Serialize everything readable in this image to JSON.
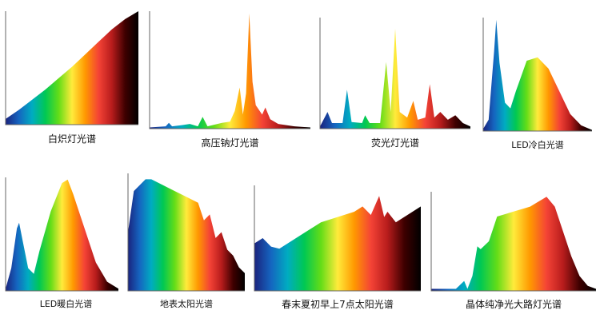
{
  "spectrum_colors": [
    "#1a237e",
    "#1565c0",
    "#00acc1",
    "#00c853",
    "#64dd17",
    "#ffeb3b",
    "#ff9800",
    "#f44336",
    "#b71c1c",
    "#3e0000",
    "#000000"
  ],
  "chart_data": [
    {
      "type": "area",
      "title": "白炽灯光谱",
      "points": [
        [
          0,
          0.05
        ],
        [
          0.1,
          0.13
        ],
        [
          0.2,
          0.22
        ],
        [
          0.3,
          0.31
        ],
        [
          0.4,
          0.41
        ],
        [
          0.5,
          0.51
        ],
        [
          0.6,
          0.62
        ],
        [
          0.7,
          0.73
        ],
        [
          0.8,
          0.84
        ],
        [
          0.9,
          0.93
        ],
        [
          1.0,
          1.0
        ]
      ]
    },
    {
      "type": "area",
      "title": "高压钠灯光谱",
      "points": [
        [
          0,
          0.01
        ],
        [
          0.1,
          0.02
        ],
        [
          0.12,
          0.05
        ],
        [
          0.14,
          0.02
        ],
        [
          0.2,
          0.03
        ],
        [
          0.25,
          0.04
        ],
        [
          0.3,
          0.02
        ],
        [
          0.33,
          0.1
        ],
        [
          0.36,
          0.02
        ],
        [
          0.45,
          0.05
        ],
        [
          0.5,
          0.06
        ],
        [
          0.53,
          0.15
        ],
        [
          0.56,
          0.35
        ],
        [
          0.58,
          0.12
        ],
        [
          0.6,
          0.3
        ],
        [
          0.62,
          0.98
        ],
        [
          0.64,
          0.4
        ],
        [
          0.66,
          0.2
        ],
        [
          0.7,
          0.12
        ],
        [
          0.72,
          0.18
        ],
        [
          0.75,
          0.08
        ],
        [
          0.8,
          0.04
        ],
        [
          0.9,
          0.02
        ],
        [
          1.0,
          0.01
        ]
      ]
    },
    {
      "type": "area",
      "title": "荧光灯光谱",
      "points": [
        [
          0,
          0.02
        ],
        [
          0.05,
          0.15
        ],
        [
          0.08,
          0.05
        ],
        [
          0.15,
          0.05
        ],
        [
          0.18,
          0.35
        ],
        [
          0.21,
          0.06
        ],
        [
          0.28,
          0.05
        ],
        [
          0.3,
          0.12
        ],
        [
          0.33,
          0.05
        ],
        [
          0.4,
          0.05
        ],
        [
          0.44,
          0.6
        ],
        [
          0.47,
          0.15
        ],
        [
          0.5,
          0.9
        ],
        [
          0.53,
          0.15
        ],
        [
          0.58,
          0.1
        ],
        [
          0.62,
          0.25
        ],
        [
          0.65,
          0.08
        ],
        [
          0.7,
          0.1
        ],
        [
          0.73,
          0.4
        ],
        [
          0.76,
          0.1
        ],
        [
          0.8,
          0.15
        ],
        [
          0.85,
          0.08
        ],
        [
          0.9,
          0.12
        ],
        [
          0.95,
          0.05
        ],
        [
          1.0,
          0.02
        ]
      ]
    },
    {
      "type": "area",
      "title": "LED冷白光谱",
      "points": [
        [
          0,
          0.02
        ],
        [
          0.05,
          0.1
        ],
        [
          0.1,
          0.7
        ],
        [
          0.12,
          0.98
        ],
        [
          0.15,
          0.6
        ],
        [
          0.2,
          0.25
        ],
        [
          0.25,
          0.2
        ],
        [
          0.3,
          0.35
        ],
        [
          0.4,
          0.62
        ],
        [
          0.5,
          0.65
        ],
        [
          0.6,
          0.55
        ],
        [
          0.7,
          0.35
        ],
        [
          0.8,
          0.15
        ],
        [
          0.9,
          0.05
        ],
        [
          1.0,
          0.01
        ]
      ]
    },
    {
      "type": "area",
      "title": "LED暖白光谱",
      "points": [
        [
          0,
          0.02
        ],
        [
          0.05,
          0.2
        ],
        [
          0.1,
          0.55
        ],
        [
          0.12,
          0.6
        ],
        [
          0.15,
          0.45
        ],
        [
          0.2,
          0.2
        ],
        [
          0.25,
          0.15
        ],
        [
          0.3,
          0.35
        ],
        [
          0.4,
          0.7
        ],
        [
          0.5,
          0.95
        ],
        [
          0.55,
          0.98
        ],
        [
          0.6,
          0.85
        ],
        [
          0.7,
          0.55
        ],
        [
          0.8,
          0.25
        ],
        [
          0.9,
          0.08
        ],
        [
          1.0,
          0.02
        ]
      ]
    },
    {
      "type": "area",
      "title": "地表太阳光谱",
      "points": [
        [
          0,
          0.5
        ],
        [
          0.05,
          0.85
        ],
        [
          0.1,
          0.9
        ],
        [
          0.15,
          0.95
        ],
        [
          0.2,
          0.95
        ],
        [
          0.3,
          0.9
        ],
        [
          0.4,
          0.85
        ],
        [
          0.5,
          0.8
        ],
        [
          0.6,
          0.75
        ],
        [
          0.65,
          0.6
        ],
        [
          0.7,
          0.65
        ],
        [
          0.75,
          0.45
        ],
        [
          0.8,
          0.5
        ],
        [
          0.85,
          0.35
        ],
        [
          0.9,
          0.3
        ],
        [
          0.95,
          0.2
        ],
        [
          1.0,
          0.15
        ]
      ]
    },
    {
      "type": "area",
      "title": "春末夏初早上7点太阳光谱",
      "points": [
        [
          0,
          0.45
        ],
        [
          0.05,
          0.5
        ],
        [
          0.1,
          0.42
        ],
        [
          0.15,
          0.4
        ],
        [
          0.2,
          0.45
        ],
        [
          0.3,
          0.55
        ],
        [
          0.4,
          0.65
        ],
        [
          0.5,
          0.7
        ],
        [
          0.6,
          0.75
        ],
        [
          0.65,
          0.8
        ],
        [
          0.7,
          0.72
        ],
        [
          0.75,
          0.9
        ],
        [
          0.78,
          0.7
        ],
        [
          0.8,
          0.75
        ],
        [
          0.85,
          0.65
        ],
        [
          0.9,
          0.7
        ],
        [
          0.95,
          0.75
        ],
        [
          1.0,
          0.8
        ]
      ]
    },
    {
      "type": "area",
      "title": "晶体纯净光大路灯光谱",
      "points": [
        [
          0,
          0.02
        ],
        [
          0.15,
          0.02
        ],
        [
          0.2,
          0.1
        ],
        [
          0.22,
          0.02
        ],
        [
          0.25,
          0.15
        ],
        [
          0.28,
          0.45
        ],
        [
          0.3,
          0.42
        ],
        [
          0.35,
          0.5
        ],
        [
          0.4,
          0.75
        ],
        [
          0.5,
          0.8
        ],
        [
          0.6,
          0.85
        ],
        [
          0.7,
          0.95
        ],
        [
          0.75,
          0.85
        ],
        [
          0.8,
          0.6
        ],
        [
          0.85,
          0.35
        ],
        [
          0.9,
          0.15
        ],
        [
          0.95,
          0.05
        ],
        [
          1.0,
          0.02
        ]
      ]
    }
  ]
}
